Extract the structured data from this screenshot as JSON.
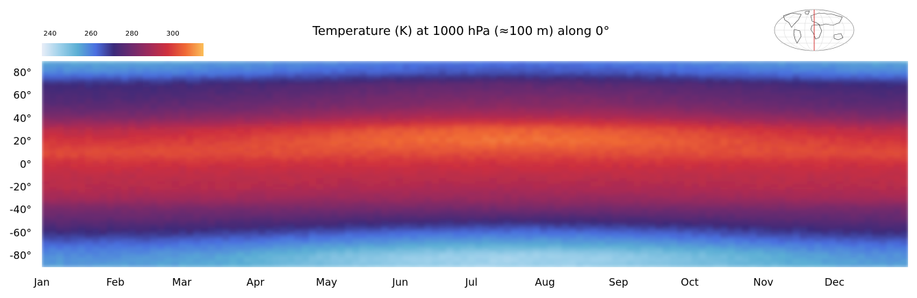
{
  "title": "Temperature (K) at 1000 hPa (≈100 m) along 0°",
  "colorbar": {
    "ticks": [
      "240",
      "260",
      "280",
      "300"
    ],
    "tick_values": [
      240,
      260,
      280,
      300
    ],
    "range": [
      236,
      315
    ],
    "colors": [
      "#e9eef8",
      "#9dd0ea",
      "#5aaed4",
      "#4a6fe0",
      "#3b2a7a",
      "#6e2a6e",
      "#a02a5a",
      "#d0303d",
      "#f06a35",
      "#fbbf5a"
    ]
  },
  "chart_data": {
    "type": "heatmap",
    "title": "Temperature (K) at 1000 hPa (≈100 m) along 0°",
    "xlabel": "",
    "ylabel": "",
    "x_ticks": [
      "Jan",
      "Feb",
      "Mar",
      "Apr",
      "May",
      "Jun",
      "Jul",
      "Aug",
      "Sep",
      "Oct",
      "Nov",
      "Dec"
    ],
    "y_ticks": [
      "80°",
      "60°",
      "40°",
      "20°",
      "0°",
      "-20°",
      "-40°",
      "-60°",
      "-80°"
    ],
    "y_tick_values": [
      80,
      60,
      40,
      20,
      0,
      -20,
      -40,
      -60,
      -80
    ],
    "ylim": [
      -90,
      90
    ],
    "x_range_days": [
      0,
      365
    ],
    "units": "K",
    "latitude_profiles": [
      {
        "month": "Jan",
        "lat": [
          90,
          80,
          70,
          60,
          50,
          40,
          30,
          20,
          10,
          0,
          -10,
          -20,
          -30,
          -40,
          -50,
          -60,
          -70,
          -80,
          -90
        ],
        "temp": [
          254,
          259,
          271,
          274,
          277,
          283,
          293,
          298,
          302,
          297,
          294,
          293,
          289,
          281,
          277,
          271,
          263,
          258,
          256
        ]
      },
      {
        "month": "Jul",
        "lat": [
          90,
          80,
          70,
          60,
          50,
          40,
          30,
          20,
          10,
          0,
          -10,
          -20,
          -30,
          -40,
          -50,
          -60,
          -70,
          -80,
          -90
        ],
        "temp": [
          261,
          266,
          277,
          281,
          285,
          293,
          305,
          307,
          302,
          297,
          294,
          291,
          287,
          280,
          272,
          262,
          254,
          244,
          245
        ]
      }
    ]
  },
  "globe_icon": "globe-map-icon"
}
